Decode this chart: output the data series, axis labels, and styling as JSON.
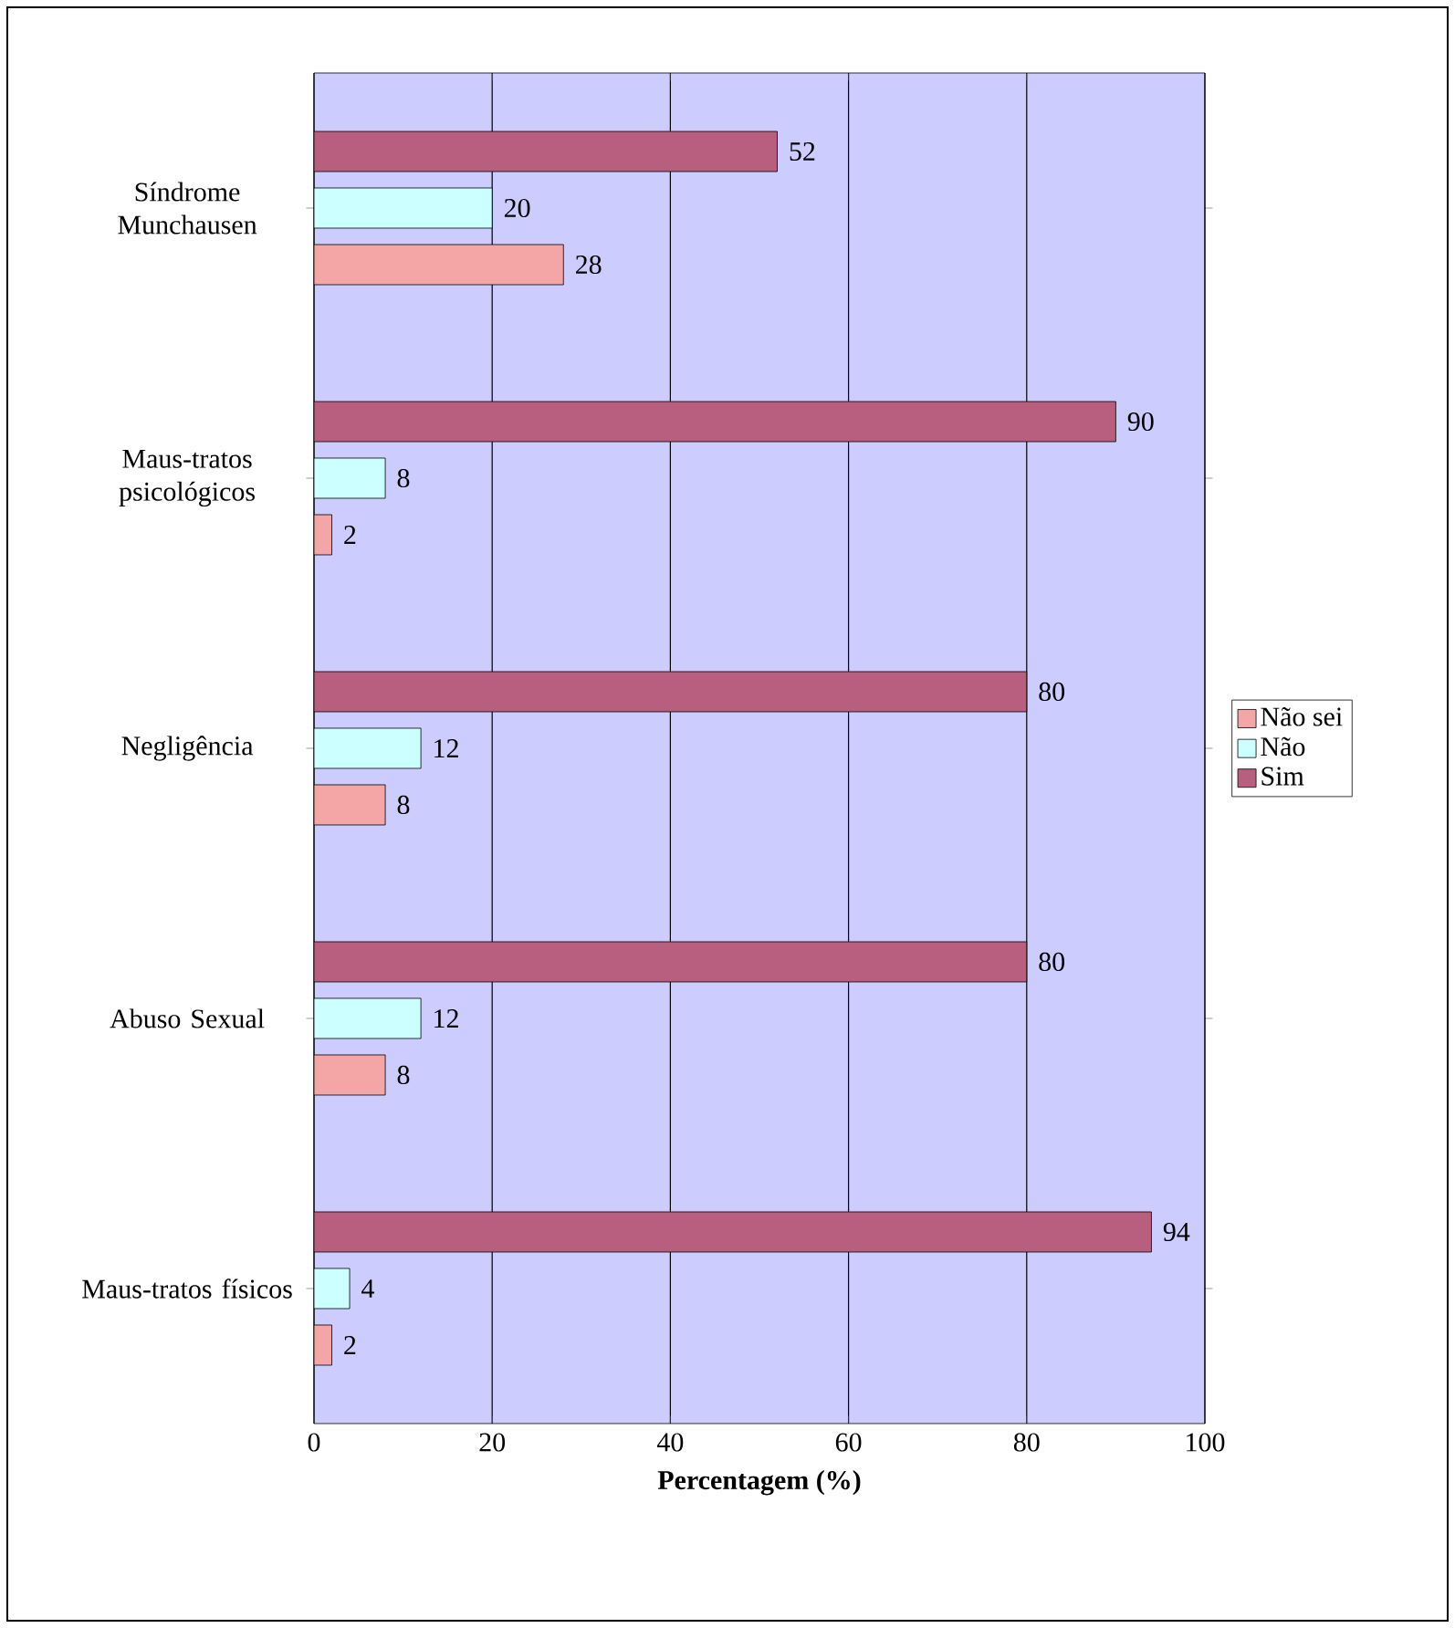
{
  "chart_data": {
    "type": "bar",
    "orientation": "horizontal",
    "xlabel": "**Percentagem (%)**",
    "categories": [
      "Síndrome Munchausen",
      "Maus-tratos psicológicos",
      "Negligência",
      "Abuso Sexual",
      "Maus-tratos físicos"
    ],
    "series": [
      {
        "name": "Não sei",
        "color": "#f4a6a6",
        "values": [
          28,
          2,
          8,
          8,
          2
        ]
      },
      {
        "name": "Não",
        "color": "#ccffff",
        "values": [
          20,
          8,
          12,
          12,
          4
        ]
      },
      {
        "name": "Sim",
        "color": "#b85f80",
        "values": [
          52,
          90,
          80,
          80,
          94
        ]
      }
    ],
    "xlim": [
      0,
      100
    ],
    "xticks": [
      0,
      20,
      40,
      60,
      80,
      100
    ],
    "grid": "x",
    "legend": "right",
    "data_labels": true
  }
}
